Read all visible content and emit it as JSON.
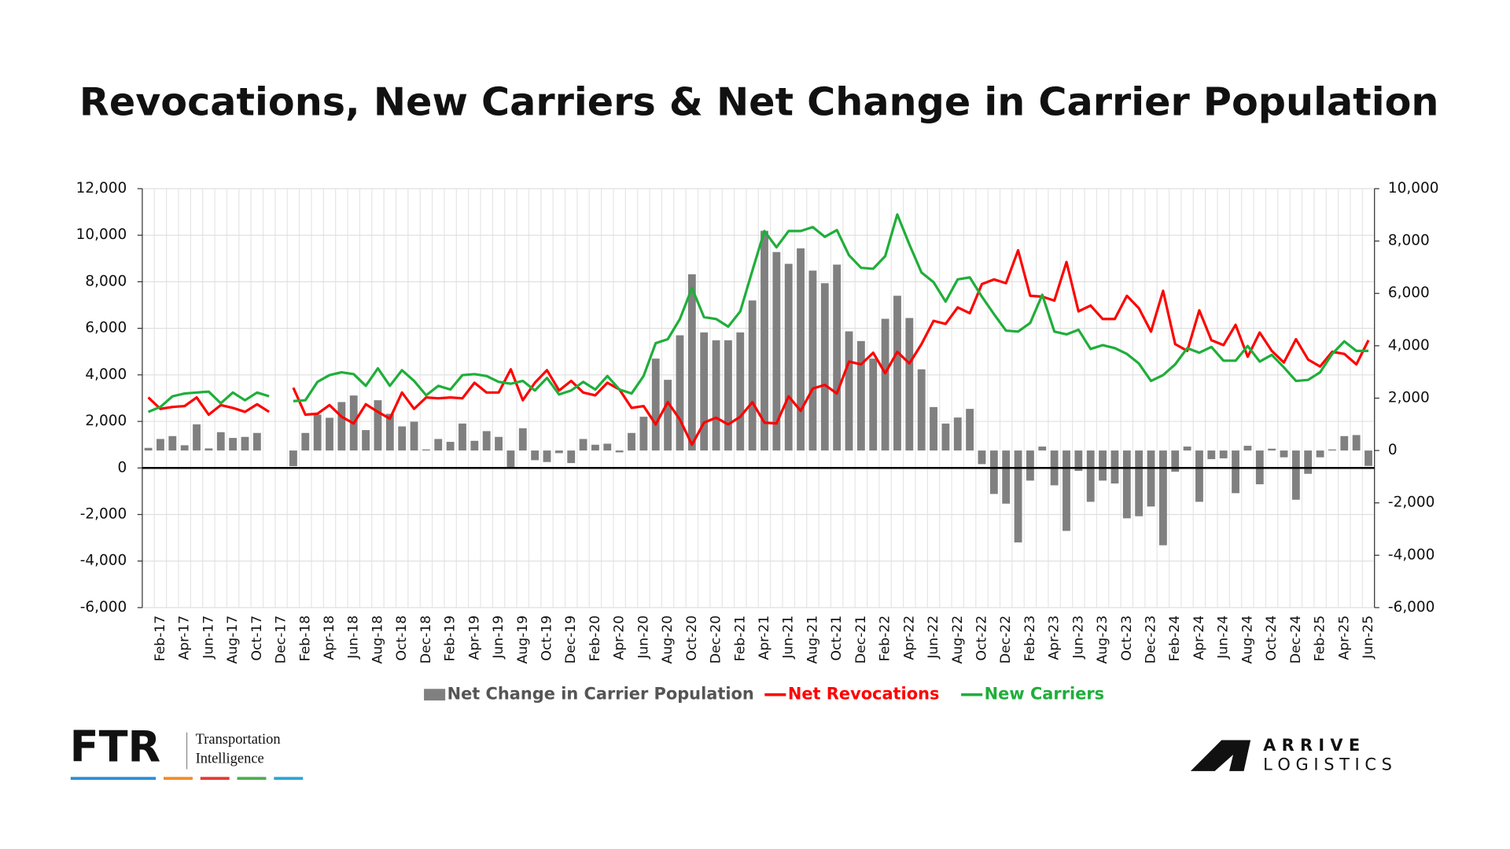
{
  "chart_data": {
    "type": "combo",
    "title": "Revocations, New Carriers & Net Change in Carrier Population",
    "categories": [
      null,
      "Feb-17",
      null,
      "Apr-17",
      null,
      "Jun-17",
      null,
      "Aug-17",
      null,
      "Oct-17",
      null,
      "Dec-17",
      null,
      "Feb-18",
      null,
      "Apr-18",
      null,
      "Jun-18",
      null,
      "Aug-18",
      null,
      "Oct-18",
      null,
      "Dec-18",
      null,
      "Feb-19",
      null,
      "Apr-19",
      null,
      "Jun-19",
      null,
      "Aug-19",
      null,
      "Oct-19",
      null,
      "Dec-19",
      null,
      "Feb-20",
      null,
      "Apr-20",
      null,
      "Jun-20",
      null,
      "Aug-20",
      null,
      "Oct-20",
      null,
      "Dec-20",
      null,
      "Feb-21",
      null,
      "Apr-21",
      null,
      "Jun-21",
      null,
      "Aug-21",
      null,
      "Oct-21",
      null,
      "Dec-21",
      null,
      "Feb-22",
      null,
      "Apr-22",
      null,
      "Jun-22",
      null,
      "Aug-22",
      null,
      "Oct-22",
      null,
      "Dec-22",
      null,
      "Feb-23",
      null,
      "Apr-23",
      null,
      "Jun-23",
      null,
      "Aug-23",
      null,
      "Oct-23",
      null,
      "Dec-23",
      null,
      "Feb-24",
      null,
      "Apr-24",
      null,
      "Jun-24",
      null,
      "Aug-24",
      null,
      "Oct-24",
      null,
      "Dec-24",
      null,
      "Feb-25",
      null,
      "Apr-25",
      null,
      "Jun-25"
    ],
    "series": [
      {
        "name": "Net Change in Carrier Population",
        "type": "bar",
        "axis": "y2",
        "color": "#808080",
        "values": [
          100,
          440,
          550,
          200,
          1000,
          80,
          700,
          480,
          520,
          670,
          null,
          null,
          -600,
          670,
          1370,
          1250,
          1850,
          2100,
          780,
          1920,
          1400,
          920,
          1100,
          40,
          440,
          330,
          1030,
          370,
          740,
          520,
          -670,
          850,
          -370,
          -440,
          -100,
          -480,
          440,
          220,
          260,
          -70,
          670,
          1290,
          3510,
          2700,
          4400,
          6730,
          4510,
          4210,
          4210,
          4510,
          5730,
          8390,
          7580,
          7130,
          7720,
          6870,
          6390,
          7100,
          4550,
          4180,
          3510,
          5030,
          5910,
          5060,
          3100,
          1660,
          1030,
          1260,
          1590,
          -520,
          -1660,
          -2030,
          -3510,
          -1150,
          150,
          -1330,
          -3070,
          -780,
          -1960,
          -1150,
          -1260,
          -2590,
          -2510,
          -2140,
          -3620,
          -810,
          150,
          -1960,
          -330,
          -300,
          -1630,
          180,
          -1290,
          70,
          -260,
          -1880,
          -890,
          -260,
          40,
          550,
          590,
          -590
        ]
      },
      {
        "name": "Net Revocations",
        "type": "line",
        "color": "#ff0000",
        "values": [
          3030,
          2540,
          2620,
          2660,
          3030,
          2290,
          2700,
          2580,
          2410,
          2740,
          2410,
          null,
          3450,
          2290,
          2330,
          2700,
          2200,
          1910,
          2740,
          2410,
          2120,
          3240,
          2540,
          3030,
          2990,
          3030,
          2990,
          3660,
          3240,
          3240,
          4240,
          2910,
          3660,
          4200,
          3330,
          3740,
          3240,
          3120,
          3660,
          3370,
          2580,
          2660,
          1870,
          2830,
          2080,
          1000,
          1950,
          2160,
          1870,
          2200,
          2830,
          1950,
          1910,
          3080,
          2450,
          3410,
          3570,
          3200,
          4570,
          4450,
          4950,
          4070,
          4990,
          4490,
          5320,
          6320,
          6190,
          6900,
          6650,
          7900,
          8100,
          7940,
          9350,
          7400,
          7360,
          7190,
          8850,
          6730,
          6980,
          6400,
          6400,
          7400,
          6860,
          5860,
          7610,
          5320,
          5030,
          6770,
          5490,
          5280,
          6150,
          4780,
          5820,
          5030,
          4530,
          5530,
          4660,
          4360,
          4990,
          4900,
          4450,
          5490
        ]
      },
      {
        "name": "New Carriers",
        "type": "line",
        "color": "#1fae3a",
        "values": [
          2410,
          2620,
          3080,
          3200,
          3240,
          3280,
          2780,
          3240,
          2910,
          3240,
          3080,
          null,
          2870,
          2910,
          3700,
          3990,
          4110,
          4030,
          3530,
          4280,
          3530,
          4200,
          3740,
          3120,
          3530,
          3370,
          3990,
          4030,
          3950,
          3700,
          3620,
          3740,
          3330,
          3870,
          3160,
          3330,
          3700,
          3370,
          3950,
          3370,
          3200,
          3950,
          5360,
          5530,
          6400,
          7730,
          6480,
          6400,
          6070,
          6730,
          8480,
          10180,
          9480,
          10180,
          10180,
          10350,
          9930,
          10220,
          9140,
          8600,
          8560,
          9100,
          10890,
          9600,
          8400,
          7980,
          7150,
          8100,
          8190,
          7360,
          6610,
          5900,
          5860,
          6230,
          7440,
          5860,
          5740,
          5940,
          5110,
          5280,
          5150,
          4900,
          4490,
          3740,
          3990,
          4450,
          5150,
          4950,
          5200,
          4610,
          4610,
          5240,
          4570,
          4860,
          4320,
          3740,
          3780,
          4110,
          4900,
          5440,
          5030,
          5030
        ]
      }
    ],
    "ylim": [
      -6000,
      12000
    ],
    "yticks": [
      {
        "value": -6000,
        "label": "-6,000"
      },
      {
        "value": -4000,
        "label": "-4,000"
      },
      {
        "value": -2000,
        "label": "-2,000"
      },
      0,
      {
        "value": 2000,
        "label": "2,000"
      },
      {
        "value": 4000,
        "label": "4,000"
      },
      {
        "value": 6000,
        "label": "6,000"
      },
      {
        "value": 8000,
        "label": "8,000"
      },
      {
        "value": 10000,
        "label": "10,000"
      },
      {
        "value": 12000,
        "label": "12,000"
      }
    ],
    "y2lim": [
      -6000,
      10000
    ],
    "y2ticks": [
      {
        "value": -6000,
        "label": "-6,000"
      },
      {
        "value": -4000,
        "label": "-4,000"
      },
      {
        "value": -2000,
        "label": "-2,000"
      },
      0,
      {
        "value": 2000,
        "label": "2,000"
      },
      {
        "value": 4000,
        "label": "4,000"
      },
      {
        "value": 6000,
        "label": "6,000"
      },
      {
        "value": 8000,
        "label": "8,000"
      },
      {
        "value": 10000,
        "label": "10,000"
      }
    ],
    "grid": true,
    "legend": "bottom"
  },
  "branding": {
    "left": {
      "logo": "FTR",
      "line1": "Transportation",
      "line2": "Intelligence"
    },
    "right": {
      "line1": "A R R I V E",
      "line2": "L O G I S T I C S"
    }
  }
}
